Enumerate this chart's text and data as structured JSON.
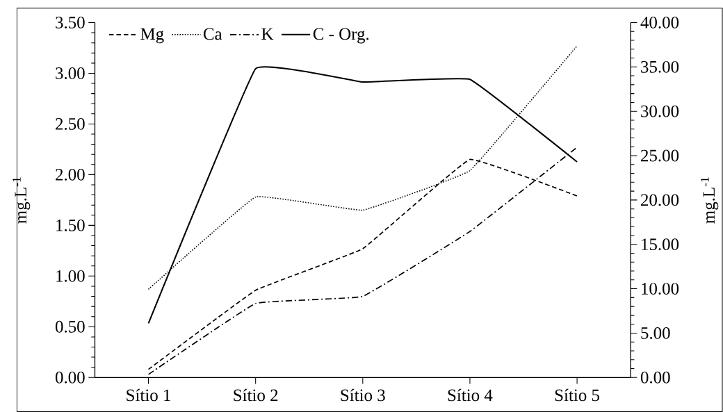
{
  "chart_data": {
    "type": "line",
    "categories": [
      "Sítio 1",
      "Sítio 2",
      "Sítio 3",
      "Sítio 4",
      "Sítio 5"
    ],
    "ylabel": "mg.L$^{-1}$",
    "y2label": "mg.L$^{-1}$",
    "ylim": [
      0,
      3.5
    ],
    "yticks": [
      {
        "value": 0,
        "label": "0.00"
      },
      {
        "value": 0.5,
        "label": "0.50"
      },
      {
        "value": 1,
        "label": "1.00"
      },
      {
        "value": 1.5,
        "label": "1.50"
      },
      {
        "value": 2,
        "label": "2.00"
      },
      {
        "value": 2.5,
        "label": "2.50"
      },
      {
        "value": 3,
        "label": "3.00"
      },
      {
        "value": 3.5,
        "label": "3.50"
      }
    ],
    "y2lim": [
      0,
      40
    ],
    "y2ticks": [
      {
        "value": 0,
        "label": "0.00"
      },
      {
        "value": 5,
        "label": "5.00"
      },
      {
        "value": 10,
        "label": "10.00"
      },
      {
        "value": 15,
        "label": "15.00"
      },
      {
        "value": 20,
        "label": "20.00"
      },
      {
        "value": 25,
        "label": "25.00"
      },
      {
        "value": 30,
        "label": "30.00"
      },
      {
        "value": 35,
        "label": "35.00"
      },
      {
        "value": 40,
        "label": "40.00"
      }
    ],
    "legend": "top left",
    "series": [
      {
        "name": "Mg",
        "color": "#000000",
        "line_style": "dashed",
        "values": [
          0.08,
          0.86,
          1.27,
          2.15,
          1.79
        ]
      },
      {
        "name": "Ca",
        "color": "#000000",
        "line_style": "dotted",
        "values": [
          0.87,
          1.78,
          1.65,
          2.04,
          3.27
        ]
      },
      {
        "name": "K",
        "color": "#000000",
        "line_style": "dashdot",
        "values": [
          0.03,
          0.73,
          0.8,
          1.44,
          2.27
        ]
      },
      {
        "name": "C - Org.",
        "color": "#000000",
        "line_style": "solid",
        "axis": "y2",
        "values": [
          6.1,
          34.8,
          33.3,
          33.6,
          24.3
        ]
      }
    ]
  }
}
